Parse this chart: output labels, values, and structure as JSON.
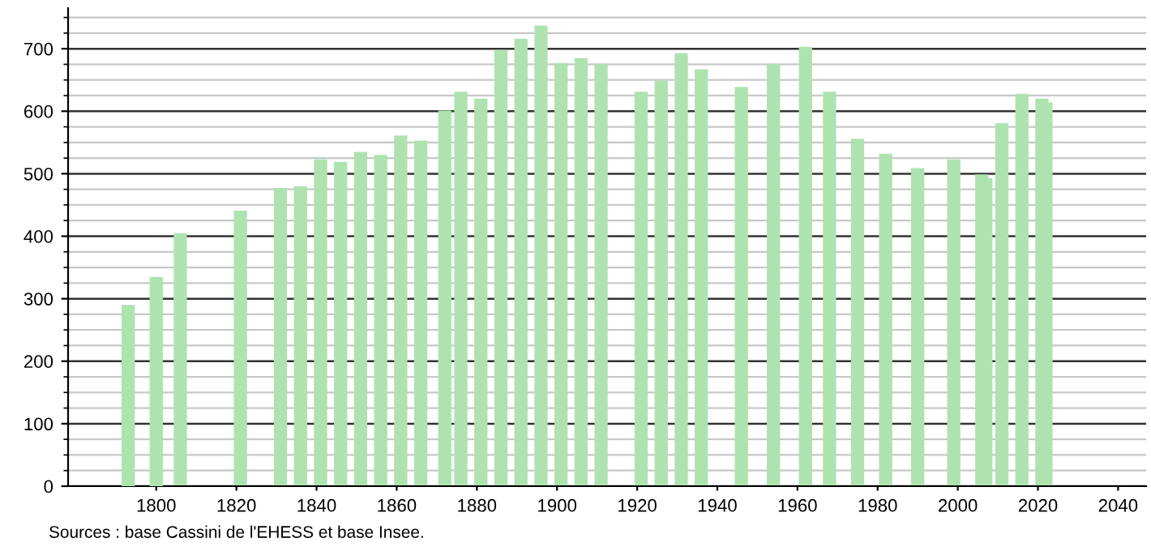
{
  "chart_data": {
    "type": "bar",
    "x": [
      1793,
      1800,
      1806,
      1821,
      1831,
      1836,
      1841,
      1846,
      1851,
      1856,
      1861,
      1866,
      1872,
      1876,
      1881,
      1886,
      1891,
      1896,
      1901,
      1906,
      1911,
      1921,
      1926,
      1931,
      1936,
      1946,
      1954,
      1962,
      1968,
      1975,
      1982,
      1990,
      1999,
      2006,
      2007,
      2011,
      2016,
      2021,
      2022
    ],
    "values": [
      290,
      335,
      405,
      441,
      477,
      480,
      523,
      519,
      535,
      530,
      561,
      553,
      601,
      631,
      620,
      698,
      716,
      737,
      677,
      685,
      676,
      631,
      649,
      693,
      667,
      639,
      676,
      703,
      631,
      556,
      532,
      509,
      523,
      499,
      493,
      581,
      628,
      620,
      614
    ],
    "color": "#aee3b0",
    "xlim": [
      1778,
      2047
    ],
    "xticks": [
      1800,
      1820,
      1840,
      1860,
      1880,
      1900,
      1920,
      1940,
      1960,
      1980,
      2000,
      2020,
      2040
    ],
    "ylim": [
      0,
      765
    ],
    "yticks": [
      0,
      100,
      200,
      300,
      400,
      500,
      600,
      700
    ],
    "grid": "y",
    "annotations": [
      "Sources : base Cassini de l'EHESS et base Insee."
    ]
  }
}
